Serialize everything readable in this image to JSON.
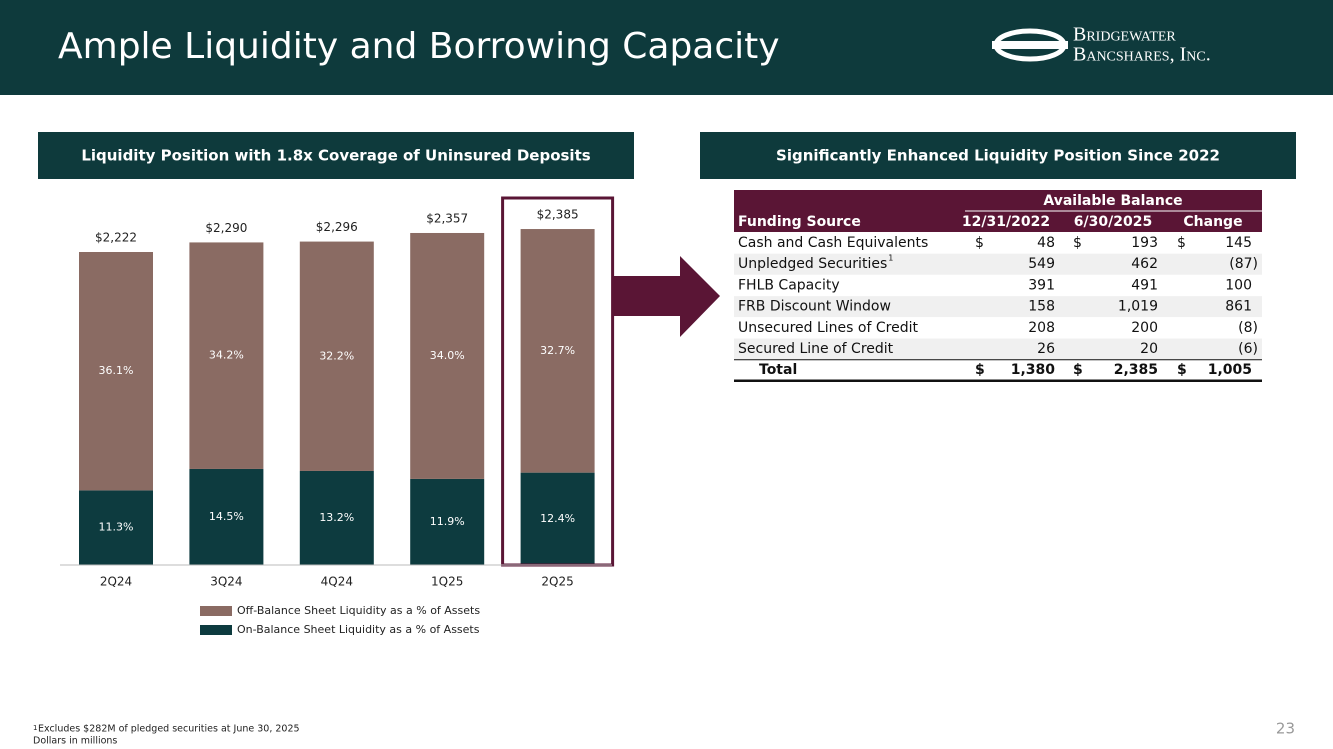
{
  "header": {
    "title": "Ample Liquidity and Borrowing Capacity",
    "logo_line1": "Bridgewater",
    "logo_line2": "Bancshares, Inc."
  },
  "chart_data": {
    "type": "bar",
    "title": "Liquidity Position with 1.8x Coverage of Uninsured Deposits",
    "categories": [
      "2Q24",
      "3Q24",
      "4Q24",
      "1Q25",
      "2Q25"
    ],
    "totals": [
      2222,
      2290,
      2296,
      2357,
      2385
    ],
    "total_labels": [
      "$2,222",
      "$2,290",
      "$2,296",
      "$2,357",
      "$2,385"
    ],
    "series": [
      {
        "name": "Off-Balance Sheet Liquidity as a % of Assets",
        "color": "#8a6b63",
        "values": [
          36.1,
          34.2,
          32.2,
          34.0,
          32.7
        ],
        "value_labels": [
          "36.1%",
          "34.2%",
          "32.2%",
          "34.0%",
          "32.7%"
        ]
      },
      {
        "name": "On-Balance Sheet Liquidity as a % of Assets",
        "color": "#0d3b3f",
        "values": [
          11.3,
          14.5,
          13.2,
          11.9,
          12.4
        ],
        "value_labels": [
          "11.3%",
          "14.5%",
          "13.2%",
          "11.9%",
          "12.4%"
        ]
      }
    ],
    "highlight_color": "#5a1535"
  },
  "table": {
    "title": "Significantly Enhanced Liquidity Position Since 2022",
    "group_header": "Available Balance",
    "columns": [
      "Funding Source",
      "12/31/2022",
      "6/30/2025",
      "Change"
    ],
    "rows": [
      {
        "label": "Cash and Cash Equivalents",
        "currency": "$",
        "values": [
          "48",
          "193",
          "145"
        ]
      },
      {
        "label": "Unpledged Securities",
        "sup": "1",
        "values": [
          "549",
          "462",
          "(87)"
        ]
      },
      {
        "label": "FHLB Capacity",
        "values": [
          "391",
          "491",
          "100"
        ]
      },
      {
        "label": "FRB Discount Window",
        "values": [
          "158",
          "1,019",
          "861"
        ]
      },
      {
        "label": "Unsecured Lines of Credit",
        "values": [
          "208",
          "200",
          "(8)"
        ]
      },
      {
        "label": "Secured Line of Credit",
        "values": [
          "26",
          "20",
          "(6)"
        ]
      },
      {
        "label": "Total",
        "currency": "$",
        "values": [
          "1,380",
          "2,385",
          "1,005"
        ],
        "total": true
      }
    ]
  },
  "footnotes": {
    "sup": "1",
    "note": "Excludes $282M of pledged securities at June 30, 2025",
    "units": "Dollars in millions"
  },
  "page_number": "23"
}
